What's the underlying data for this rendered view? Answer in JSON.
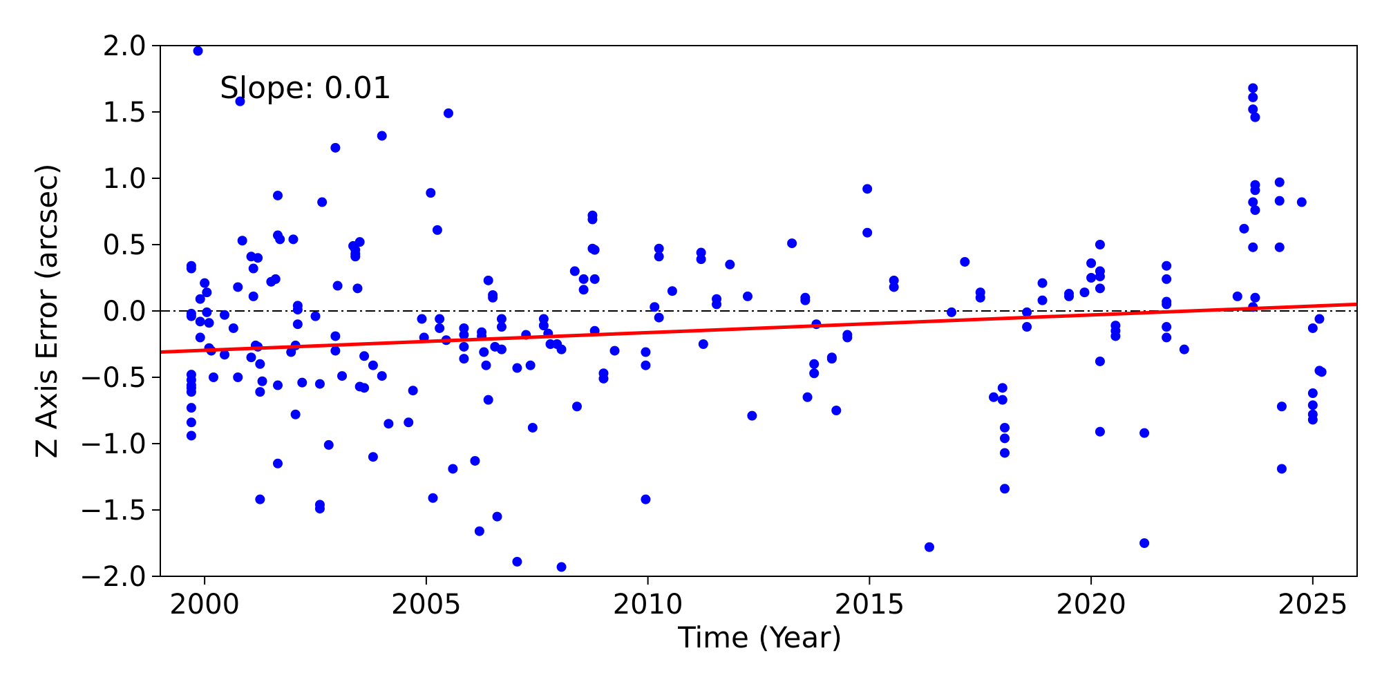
{
  "chart_data": {
    "type": "scatter",
    "xlabel": "Time (Year)",
    "ylabel": "Z Axis Error (arcsec)",
    "xlim": [
      1999,
      2026
    ],
    "ylim": [
      -2.0,
      2.0
    ],
    "x_ticks": [
      2000,
      2005,
      2010,
      2015,
      2020,
      2025
    ],
    "y_ticks": [
      -2.0,
      -1.5,
      -1.0,
      -0.5,
      0.0,
      0.5,
      1.0,
      1.5,
      2.0
    ],
    "x_tick_labels": [
      "2000",
      "2005",
      "2010",
      "2015",
      "2020",
      "2025"
    ],
    "y_tick_labels": [
      "−2.0",
      "−1.5",
      "−1.0",
      "−0.5",
      "0.0",
      "0.5",
      "1.0",
      "1.5",
      "2.0"
    ],
    "grid": false,
    "annotation": "Slope: 0.01",
    "colors": {
      "points": "#0000ff",
      "fit_line": "#ff0000",
      "zero_line": "#000000",
      "annotation": "#ff0000"
    },
    "zero_line": {
      "y": 0.0,
      "style": "dash-dot"
    },
    "fit_line": {
      "x": [
        1999,
        2026
      ],
      "y": [
        -0.31,
        0.05
      ]
    },
    "points": [
      [
        1999.7,
        0.34
      ],
      [
        1999.7,
        0.32
      ],
      [
        1999.7,
        -0.02
      ],
      [
        1999.7,
        -0.04
      ],
      [
        1999.7,
        -0.48
      ],
      [
        1999.7,
        -0.52
      ],
      [
        1999.7,
        -0.56
      ],
      [
        1999.7,
        -0.58
      ],
      [
        1999.7,
        -0.61
      ],
      [
        1999.7,
        -0.73
      ],
      [
        1999.7,
        -0.84
      ],
      [
        1999.7,
        -0.94
      ],
      [
        1999.85,
        1.96
      ],
      [
        1999.9,
        0.09
      ],
      [
        1999.9,
        -0.08
      ],
      [
        1999.9,
        -0.2
      ],
      [
        2000.0,
        0.21
      ],
      [
        2000.05,
        0.14
      ],
      [
        2000.05,
        -0.01
      ],
      [
        2000.1,
        -0.09
      ],
      [
        2000.1,
        -0.28
      ],
      [
        2000.15,
        -0.3
      ],
      [
        2000.2,
        -0.5
      ],
      [
        2000.45,
        -0.03
      ],
      [
        2000.45,
        -0.33
      ],
      [
        2000.65,
        -0.13
      ],
      [
        2000.75,
        0.18
      ],
      [
        2000.75,
        -0.5
      ],
      [
        2000.8,
        1.58
      ],
      [
        2000.85,
        0.53
      ],
      [
        2001.05,
        0.41
      ],
      [
        2001.05,
        -0.35
      ],
      [
        2001.1,
        0.32
      ],
      [
        2001.1,
        0.11
      ],
      [
        2001.15,
        -0.26
      ],
      [
        2001.2,
        0.4
      ],
      [
        2001.2,
        -0.27
      ],
      [
        2001.25,
        -0.4
      ],
      [
        2001.25,
        -0.61
      ],
      [
        2001.3,
        -0.53
      ],
      [
        2001.25,
        -1.42
      ],
      [
        2001.5,
        0.22
      ],
      [
        2001.6,
        0.24
      ],
      [
        2001.65,
        0.57
      ],
      [
        2001.7,
        0.54
      ],
      [
        2001.65,
        0.87
      ],
      [
        2001.65,
        -0.56
      ],
      [
        2001.65,
        -1.15
      ],
      [
        2001.95,
        -0.31
      ],
      [
        2002.0,
        0.54
      ],
      [
        2002.05,
        -0.26
      ],
      [
        2002.05,
        -0.78
      ],
      [
        2002.1,
        0.04
      ],
      [
        2002.1,
        0.01
      ],
      [
        2002.1,
        -0.1
      ],
      [
        2002.2,
        -0.54
      ],
      [
        2002.5,
        -0.04
      ],
      [
        2002.6,
        -1.46
      ],
      [
        2002.6,
        -1.49
      ],
      [
        2002.6,
        -0.55
      ],
      [
        2002.65,
        0.82
      ],
      [
        2002.8,
        -1.01
      ],
      [
        2002.95,
        1.23
      ],
      [
        2002.95,
        -0.19
      ],
      [
        2002.95,
        -0.3
      ],
      [
        2003.0,
        0.19
      ],
      [
        2003.1,
        -0.49
      ],
      [
        2003.35,
        0.49
      ],
      [
        2003.4,
        0.46
      ],
      [
        2003.4,
        0.43
      ],
      [
        2003.4,
        0.41
      ],
      [
        2003.45,
        0.17
      ],
      [
        2003.5,
        0.52
      ],
      [
        2003.5,
        -0.57
      ],
      [
        2003.6,
        -0.34
      ],
      [
        2003.6,
        -0.58
      ],
      [
        2003.8,
        -0.41
      ],
      [
        2003.8,
        -1.1
      ],
      [
        2004.0,
        1.32
      ],
      [
        2004.0,
        -0.49
      ],
      [
        2004.15,
        -0.85
      ],
      [
        2004.6,
        -0.84
      ],
      [
        2004.7,
        -0.6
      ],
      [
        2004.9,
        -0.06
      ],
      [
        2004.95,
        -0.2
      ],
      [
        2005.1,
        0.89
      ],
      [
        2005.15,
        -1.41
      ],
      [
        2005.25,
        0.61
      ],
      [
        2005.3,
        -0.06
      ],
      [
        2005.3,
        -0.13
      ],
      [
        2005.45,
        -0.22
      ],
      [
        2005.5,
        1.49
      ],
      [
        2005.6,
        -1.19
      ],
      [
        2005.85,
        -0.13
      ],
      [
        2005.85,
        -0.18
      ],
      [
        2005.85,
        -0.27
      ],
      [
        2005.85,
        -0.36
      ],
      [
        2006.1,
        -1.13
      ],
      [
        2006.2,
        -1.66
      ],
      [
        2006.25,
        -0.16
      ],
      [
        2006.25,
        -0.19
      ],
      [
        2006.3,
        -0.31
      ],
      [
        2006.35,
        -0.41
      ],
      [
        2006.4,
        0.23
      ],
      [
        2006.4,
        -0.67
      ],
      [
        2006.5,
        0.12
      ],
      [
        2006.5,
        0.1
      ],
      [
        2006.55,
        -0.27
      ],
      [
        2006.6,
        -1.55
      ],
      [
        2006.7,
        -0.29
      ],
      [
        2006.7,
        -0.06
      ],
      [
        2006.7,
        -0.12
      ],
      [
        2007.05,
        -1.89
      ],
      [
        2007.05,
        -0.43
      ],
      [
        2007.25,
        -0.18
      ],
      [
        2007.35,
        -0.41
      ],
      [
        2007.4,
        -0.88
      ],
      [
        2007.65,
        -0.06
      ],
      [
        2007.65,
        -0.11
      ],
      [
        2007.75,
        -0.17
      ],
      [
        2007.8,
        -0.25
      ],
      [
        2007.95,
        -0.25
      ],
      [
        2008.05,
        -0.29
      ],
      [
        2008.05,
        -1.93
      ],
      [
        2008.35,
        0.3
      ],
      [
        2008.4,
        -0.72
      ],
      [
        2008.55,
        0.24
      ],
      [
        2008.55,
        0.16
      ],
      [
        2008.75,
        0.72
      ],
      [
        2008.75,
        0.69
      ],
      [
        2008.75,
        0.47
      ],
      [
        2008.8,
        0.46
      ],
      [
        2008.8,
        0.24
      ],
      [
        2008.8,
        -0.15
      ],
      [
        2009.0,
        -0.47
      ],
      [
        2009.0,
        -0.51
      ],
      [
        2009.25,
        -0.3
      ],
      [
        2009.95,
        -0.31
      ],
      [
        2009.95,
        -0.41
      ],
      [
        2009.95,
        -1.42
      ],
      [
        2010.15,
        0.03
      ],
      [
        2010.25,
        0.47
      ],
      [
        2010.25,
        0.41
      ],
      [
        2010.25,
        -0.05
      ],
      [
        2010.55,
        0.15
      ],
      [
        2011.2,
        0.44
      ],
      [
        2011.2,
        0.39
      ],
      [
        2011.25,
        -0.25
      ],
      [
        2011.55,
        0.09
      ],
      [
        2011.55,
        0.05
      ],
      [
        2011.85,
        0.35
      ],
      [
        2012.25,
        0.11
      ],
      [
        2012.35,
        -0.79
      ],
      [
        2013.25,
        0.51
      ],
      [
        2013.55,
        0.1
      ],
      [
        2013.55,
        0.08
      ],
      [
        2013.6,
        -0.65
      ],
      [
        2013.75,
        -0.4
      ],
      [
        2013.75,
        -0.47
      ],
      [
        2013.8,
        -0.1
      ],
      [
        2014.15,
        -0.35
      ],
      [
        2014.15,
        -0.36
      ],
      [
        2014.25,
        -0.75
      ],
      [
        2014.5,
        -0.18
      ],
      [
        2014.5,
        -0.2
      ],
      [
        2014.95,
        0.92
      ],
      [
        2014.95,
        0.59
      ],
      [
        2015.55,
        0.23
      ],
      [
        2015.55,
        0.18
      ],
      [
        2016.35,
        -1.78
      ],
      [
        2016.85,
        -0.01
      ],
      [
        2017.15,
        0.37
      ],
      [
        2017.5,
        0.14
      ],
      [
        2017.5,
        0.1
      ],
      [
        2017.8,
        -0.65
      ],
      [
        2018.0,
        -0.58
      ],
      [
        2018.0,
        -0.67
      ],
      [
        2018.05,
        -0.88
      ],
      [
        2018.05,
        -0.96
      ],
      [
        2018.05,
        -1.07
      ],
      [
        2018.05,
        -1.34
      ],
      [
        2018.55,
        -0.01
      ],
      [
        2018.55,
        -0.12
      ],
      [
        2018.9,
        0.21
      ],
      [
        2018.9,
        0.08
      ],
      [
        2019.5,
        0.13
      ],
      [
        2019.5,
        0.11
      ],
      [
        2019.85,
        0.14
      ],
      [
        2020.0,
        0.36
      ],
      [
        2020.0,
        0.25
      ],
      [
        2020.2,
        0.3
      ],
      [
        2020.2,
        0.26
      ],
      [
        2020.2,
        0.17
      ],
      [
        2020.2,
        0.5
      ],
      [
        2020.2,
        -0.38
      ],
      [
        2020.2,
        -0.91
      ],
      [
        2020.55,
        -0.11
      ],
      [
        2020.55,
        -0.15
      ],
      [
        2020.55,
        -0.19
      ],
      [
        2021.2,
        -0.92
      ],
      [
        2021.2,
        -1.75
      ],
      [
        2021.7,
        0.34
      ],
      [
        2021.7,
        0.24
      ],
      [
        2021.7,
        0.07
      ],
      [
        2021.7,
        0.05
      ],
      [
        2021.7,
        -0.12
      ],
      [
        2021.7,
        -0.2
      ],
      [
        2022.1,
        -0.29
      ],
      [
        2023.3,
        0.11
      ],
      [
        2023.45,
        0.62
      ],
      [
        2023.65,
        1.68
      ],
      [
        2023.65,
        1.61
      ],
      [
        2023.65,
        1.52
      ],
      [
        2023.7,
        1.46
      ],
      [
        2023.7,
        0.95
      ],
      [
        2023.7,
        0.91
      ],
      [
        2023.65,
        0.82
      ],
      [
        2023.7,
        0.76
      ],
      [
        2023.65,
        0.48
      ],
      [
        2023.7,
        0.1
      ],
      [
        2023.65,
        0.03
      ],
      [
        2024.25,
        0.97
      ],
      [
        2024.25,
        0.83
      ],
      [
        2024.25,
        0.48
      ],
      [
        2024.3,
        -0.72
      ],
      [
        2024.3,
        -1.19
      ],
      [
        2024.75,
        0.82
      ],
      [
        2025.0,
        -0.13
      ],
      [
        2025.0,
        -0.62
      ],
      [
        2025.0,
        -0.71
      ],
      [
        2025.0,
        -0.78
      ],
      [
        2025.0,
        -0.82
      ],
      [
        2025.15,
        -0.06
      ],
      [
        2025.15,
        -0.45
      ],
      [
        2025.2,
        -0.46
      ]
    ]
  }
}
